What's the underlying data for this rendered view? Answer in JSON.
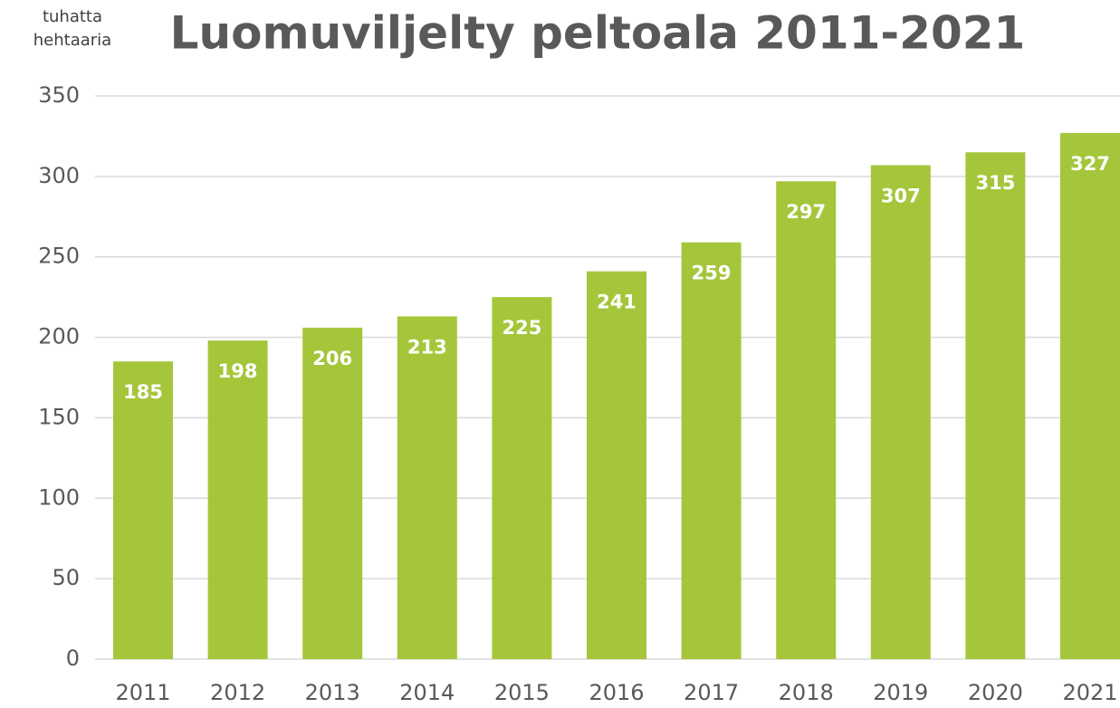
{
  "chart_data": {
    "type": "bar",
    "title": "Luomuviljelty peltoala 2011-2021",
    "y_label": "tuhatta hehtaaria",
    "categories": [
      "2011",
      "2012",
      "2013",
      "2014",
      "2015",
      "2016",
      "2017",
      "2018",
      "2019",
      "2020",
      "2021"
    ],
    "values": [
      185,
      198,
      206,
      213,
      225,
      241,
      259,
      297,
      307,
      315,
      327
    ],
    "color": "#a5c63b",
    "ylim": [
      0,
      350
    ],
    "yticks": [
      0,
      50,
      100,
      150,
      200,
      250,
      300,
      350
    ],
    "grid": true
  }
}
